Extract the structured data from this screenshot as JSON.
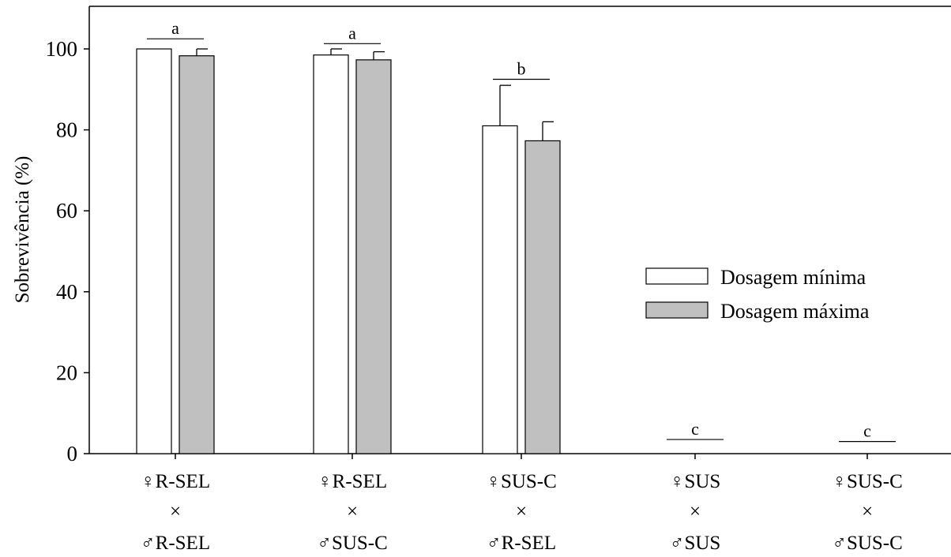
{
  "chart_data": {
    "type": "bar",
    "title": "",
    "xlabel": "",
    "ylabel": "Sobrevivência (%)",
    "ylim": [
      0,
      110
    ],
    "yticks": [
      0,
      20,
      40,
      60,
      80,
      100
    ],
    "grid": false,
    "legend_position": "right",
    "categories": [
      [
        "♀R-SEL",
        "×",
        "♂R-SEL"
      ],
      [
        "♀R-SEL",
        "×",
        "♂SUS-C"
      ],
      [
        "♀SUS-C",
        "×",
        "♂R-SEL"
      ],
      [
        "♀SUS",
        "×",
        "♂SUS"
      ],
      [
        "♀SUS-C",
        "×",
        "♂SUS-C"
      ]
    ],
    "series": [
      {
        "name": "Dosagem mínima",
        "color": "#ffffff",
        "values": [
          100,
          98.5,
          81,
          0,
          0
        ],
        "errors": [
          0,
          1.5,
          10,
          0,
          0
        ]
      },
      {
        "name": "Dosagem máxima",
        "color": "#c0c0c0",
        "values": [
          98.3,
          97.3,
          77.3,
          0,
          0
        ],
        "errors": [
          1.7,
          2,
          4.7,
          0,
          0
        ]
      }
    ],
    "significance": [
      {
        "label": "a",
        "y": 102.5
      },
      {
        "label": "a",
        "y": 101.3
      },
      {
        "label": "b",
        "y": 92.5
      },
      {
        "label": "c",
        "y": 3.5
      },
      {
        "label": "c",
        "y": 3
      }
    ]
  }
}
